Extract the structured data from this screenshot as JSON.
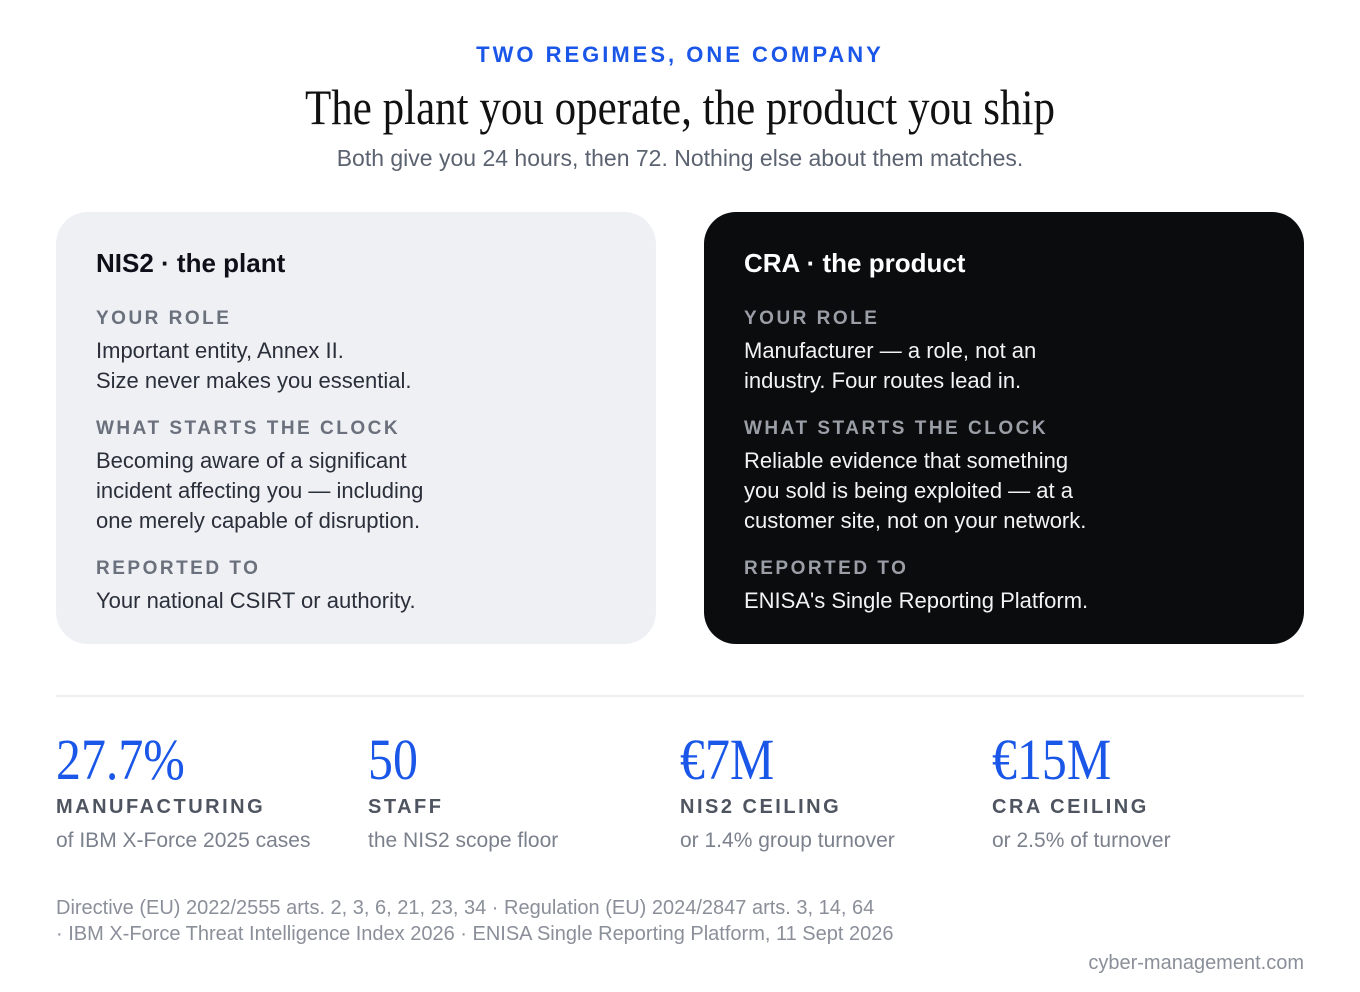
{
  "header": {
    "eyebrow": "TWO REGIMES, ONE COMPANY",
    "title": "The plant you operate, the product you ship",
    "subtitle": "Both give you 24 hours, then 72. Nothing else about them matches."
  },
  "cards": [
    {
      "title": "NIS2 · the plant",
      "sections": [
        {
          "label": "YOUR ROLE",
          "text": "Important entity, Annex II.\nSize never makes you essential."
        },
        {
          "label": "WHAT STARTS THE CLOCK",
          "text": "Becoming aware of a significant\nincident affecting you — including\none merely capable of disruption."
        },
        {
          "label": "REPORTED TO",
          "text": "Your national CSIRT or authority."
        }
      ]
    },
    {
      "title": "CRA · the product",
      "sections": [
        {
          "label": "YOUR ROLE",
          "text": "Manufacturer — a role, not an\nindustry. Four routes lead in."
        },
        {
          "label": "WHAT STARTS THE CLOCK",
          "text": "Reliable evidence that something\nyou sold is being exploited — at a\ncustomer site, not on your network."
        },
        {
          "label": "REPORTED TO",
          "text": "ENISA's Single Reporting Platform."
        }
      ]
    }
  ],
  "stats": [
    {
      "value": "27.7%",
      "label": "MANUFACTURING",
      "desc": "of IBM X-Force 2025 cases"
    },
    {
      "value": "50",
      "label": "STAFF",
      "desc": "the NIS2 scope floor"
    },
    {
      "value": "€7M",
      "label": "NIS2 CEILING",
      "desc": "or 1.4% group turnover"
    },
    {
      "value": "€15M",
      "label": "CRA CEILING",
      "desc": "or 2.5% of turnover"
    }
  ],
  "footer": {
    "sources": "Directive (EU) 2022/2555 arts. 2, 3, 6, 21, 23, 34 · Regulation (EU) 2024/2847 arts. 3, 14, 64\n· IBM X-Force Threat Intelligence Index 2026 · ENISA Single Reporting Platform, 11 Sept 2026",
    "site": "cyber-management.com"
  },
  "colors": {
    "accent": "#1a56e8",
    "light_card": "#eef0f4",
    "dark_card": "#0b0c0e"
  }
}
